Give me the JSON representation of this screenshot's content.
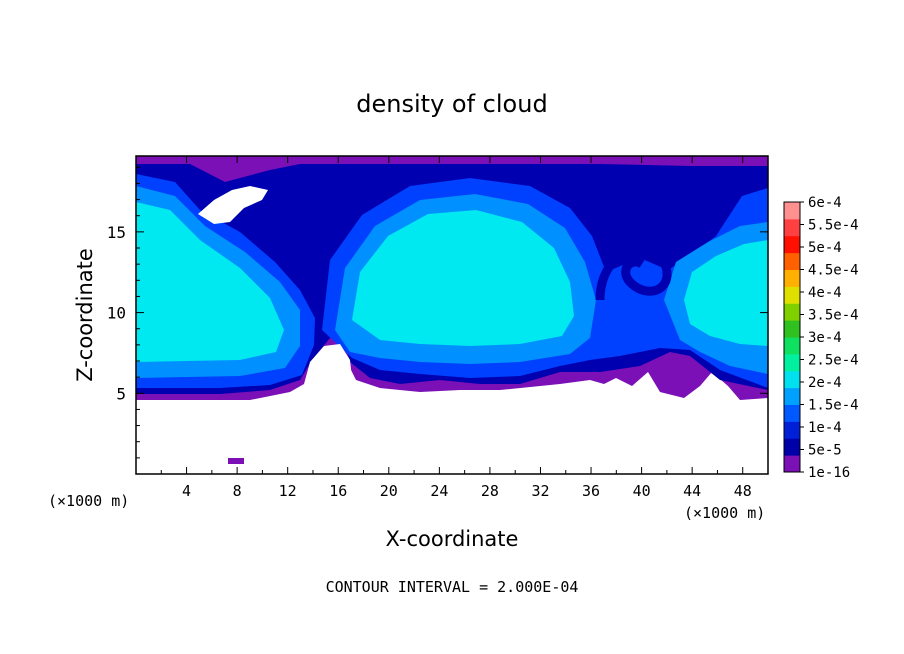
{
  "chart_data": {
    "type": "heatmap",
    "title": "density of cloud",
    "xlabel": "X-coordinate",
    "ylabel": "Z-coordinate",
    "x_unit_label": "(×1000 m)",
    "x_unit_label_right": "(×1000 m)",
    "xlim": [
      0,
      50
    ],
    "ylim": [
      0,
      19.7
    ],
    "x_ticks": [
      4,
      8,
      12,
      16,
      20,
      24,
      28,
      32,
      36,
      40,
      44,
      48
    ],
    "y_ticks": [
      5,
      10,
      15
    ],
    "footer": "CONTOUR INTERVAL = 2.000E-04",
    "colorbar": {
      "labels": [
        "1e-16",
        "5e-5",
        "1e-4",
        "1.5e-4",
        "2e-4",
        "2.5e-4",
        "3e-4",
        "3.5e-4",
        "4e-4",
        "4.5e-4",
        "5e-4",
        "5.5e-4",
        "6e-4"
      ],
      "colors": [
        "#7a10b5",
        "#0000a8",
        "#0020d8",
        "#0058ff",
        "#00a0ff",
        "#00e0ee",
        "#00f0a0",
        "#10e060",
        "#30c020",
        "#80d000",
        "#e0e000",
        "#ffb000",
        "#ff6000",
        "#ff1000",
        "#ff4040",
        "#ff9090"
      ]
    },
    "color_scale": {
      "dark_purple": "#7a10b5",
      "dark_blue": "#0000b0",
      "blue": "#0040ff",
      "light_blue": "#0090ff",
      "cyan": "#00e8f0"
    }
  }
}
